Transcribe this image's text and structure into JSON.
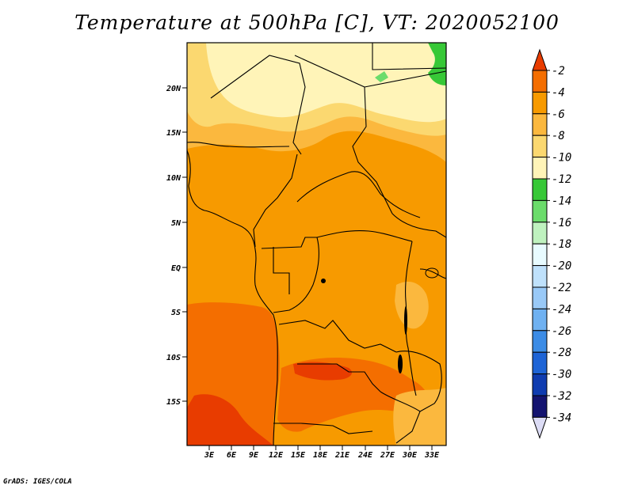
{
  "title": "Temperature at 500hPa [C], VT: 2020052100",
  "credit": "GrADS: IGES/COLA",
  "map": {
    "lat_labels": [
      "20N",
      "15N",
      "10N",
      "5N",
      "EQ",
      "5S",
      "10S",
      "15S"
    ],
    "lon_labels": [
      "3E",
      "6E",
      "9E",
      "12E",
      "15E",
      "18E",
      "21E",
      "24E",
      "27E",
      "30E",
      "33E"
    ]
  },
  "colorbar": {
    "labels": [
      "-2",
      "-4",
      "-6",
      "-8",
      "-10",
      "-12",
      "-14",
      "-16",
      "-18",
      "-20",
      "-22",
      "-24",
      "-26",
      "-28",
      "-30",
      "-32",
      "-34"
    ],
    "colors": [
      "#e83c00",
      "#f46e00",
      "#f79a00",
      "#fbb83e",
      "#fbd870",
      "#fff4b8",
      "#37c837",
      "#6bdc6b",
      "#bff2bf",
      "#e8fbff",
      "#bfe1fb",
      "#99c9f7",
      "#6fb1f1",
      "#3c8ce6",
      "#1e64d6",
      "#0f3cb0",
      "#141470",
      "#dcdcf5"
    ]
  }
}
